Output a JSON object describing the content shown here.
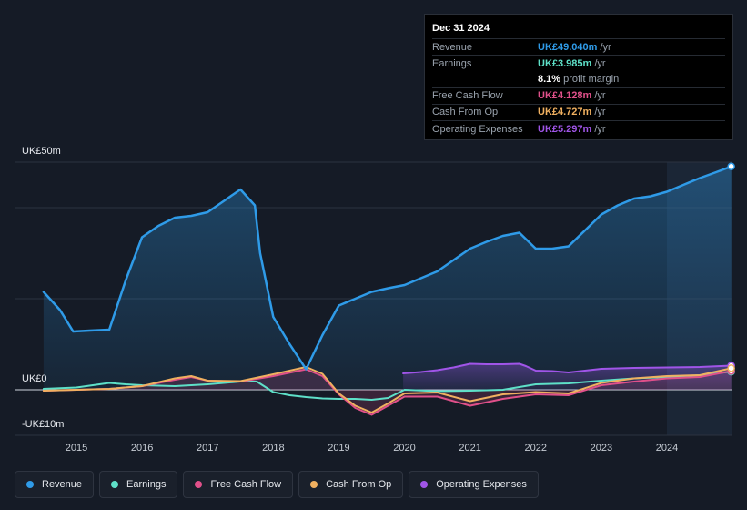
{
  "tooltip": {
    "date": "Dec 31 2024",
    "rows": [
      {
        "label": "Revenue",
        "value": "UK£49.040m",
        "unit": "/yr",
        "color": "#2f9be8"
      },
      {
        "label": "Earnings",
        "value": "UK£3.985m",
        "unit": "/yr",
        "color": "#5ee0c8"
      },
      {
        "label": "",
        "value": "8.1%",
        "unit": "profit margin",
        "color": "#ffffff"
      },
      {
        "label": "Free Cash Flow",
        "value": "UK£4.128m",
        "unit": "/yr",
        "color": "#e0508a"
      },
      {
        "label": "Cash From Op",
        "value": "UK£4.727m",
        "unit": "/yr",
        "color": "#f0b060"
      },
      {
        "label": "Operating Expenses",
        "value": "UK£5.297m",
        "unit": "/yr",
        "color": "#a055e8"
      }
    ]
  },
  "legend": [
    {
      "label": "Revenue",
      "color": "#2f9be8"
    },
    {
      "label": "Earnings",
      "color": "#5ee0c8"
    },
    {
      "label": "Free Cash Flow",
      "color": "#e0508a"
    },
    {
      "label": "Cash From Op",
      "color": "#f0b060"
    },
    {
      "label": "Operating Expenses",
      "color": "#a055e8"
    }
  ],
  "chart_data": {
    "type": "line",
    "ylabel_top": "UK£50m",
    "ylabel_zero": "UK£0",
    "ylabel_bottom": "-UK£10m",
    "ylim": [
      -10,
      50
    ],
    "xlim": [
      2014.5,
      2025.0
    ],
    "x_ticks": [
      "2015",
      "2016",
      "2017",
      "2018",
      "2019",
      "2020",
      "2021",
      "2022",
      "2023",
      "2024"
    ],
    "x_tick_values": [
      2015,
      2016,
      2017,
      2018,
      2019,
      2020,
      2021,
      2022,
      2023,
      2024
    ],
    "forecast_start": 2024.0,
    "series": [
      {
        "name": "Revenue",
        "color": "#2f9be8",
        "fill": true,
        "x": [
          2014.5,
          2014.75,
          2014.95,
          2015.2,
          2015.5,
          2015.75,
          2016.0,
          2016.25,
          2016.5,
          2016.75,
          2017.0,
          2017.25,
          2017.5,
          2017.72,
          2017.8,
          2018.0,
          2018.25,
          2018.5,
          2018.75,
          2019.0,
          2019.25,
          2019.5,
          2019.75,
          2020.0,
          2020.25,
          2020.5,
          2020.75,
          2021.0,
          2021.25,
          2021.5,
          2021.75,
          2022.0,
          2022.25,
          2022.5,
          2022.75,
          2023.0,
          2023.25,
          2023.5,
          2023.75,
          2024.0,
          2024.25,
          2024.5,
          2024.75,
          2024.98
        ],
        "values": [
          21.5,
          17.5,
          12.8,
          13.0,
          13.2,
          24.0,
          33.5,
          36.0,
          37.8,
          38.2,
          39.0,
          41.5,
          44.0,
          40.5,
          30.0,
          16.0,
          10.0,
          4.5,
          12.0,
          18.5,
          20.0,
          21.5,
          22.3,
          23.0,
          24.5,
          26.0,
          28.5,
          31.0,
          32.5,
          33.8,
          34.5,
          31.0,
          31.0,
          31.5,
          35.0,
          38.5,
          40.5,
          42.0,
          42.5,
          43.5,
          45.0,
          46.5,
          47.8,
          49.04
        ]
      },
      {
        "name": "Earnings",
        "color": "#5ee0c8",
        "fill": false,
        "x": [
          2014.5,
          2015.0,
          2015.25,
          2015.5,
          2015.75,
          2016.0,
          2016.5,
          2017.0,
          2017.5,
          2017.75,
          2018.0,
          2018.25,
          2018.5,
          2018.75,
          2019.0,
          2019.25,
          2019.5,
          2019.75,
          2020.0,
          2020.5,
          2021.0,
          2021.5,
          2022.0,
          2022.5,
          2023.0,
          2023.5,
          2024.0,
          2024.5,
          2024.98
        ],
        "values": [
          0.2,
          0.5,
          1.0,
          1.5,
          1.2,
          1.0,
          0.8,
          1.2,
          1.8,
          1.8,
          -0.5,
          -1.2,
          -1.6,
          -1.9,
          -2.0,
          -2.0,
          -2.2,
          -1.8,
          0.0,
          -0.3,
          -0.2,
          0.0,
          1.2,
          1.4,
          2.0,
          2.5,
          2.8,
          3.2,
          3.985
        ]
      },
      {
        "name": "Free Cash Flow",
        "color": "#e0508a",
        "fill": false,
        "x": [
          2014.5,
          2015.0,
          2015.5,
          2016.0,
          2016.5,
          2016.75,
          2017.0,
          2017.5,
          2018.0,
          2018.5,
          2018.75,
          2019.0,
          2019.25,
          2019.5,
          2019.75,
          2020.0,
          2020.5,
          2021.0,
          2021.5,
          2022.0,
          2022.5,
          2023.0,
          2023.5,
          2024.0,
          2024.5,
          2024.98
        ],
        "values": [
          -0.2,
          0.0,
          0.2,
          0.8,
          2.2,
          2.8,
          2.0,
          1.8,
          3.0,
          4.5,
          3.0,
          -1.0,
          -4.0,
          -5.5,
          -3.5,
          -1.5,
          -1.5,
          -3.5,
          -2.0,
          -1.0,
          -1.2,
          1.0,
          1.8,
          2.5,
          2.8,
          4.128
        ]
      },
      {
        "name": "Cash From Op",
        "color": "#f0b060",
        "fill": false,
        "x": [
          2014.5,
          2015.0,
          2015.5,
          2016.0,
          2016.5,
          2016.75,
          2017.0,
          2017.5,
          2018.0,
          2018.5,
          2018.75,
          2019.0,
          2019.25,
          2019.5,
          2019.75,
          2020.0,
          2020.5,
          2021.0,
          2021.5,
          2022.0,
          2022.5,
          2023.0,
          2023.5,
          2024.0,
          2024.5,
          2024.98
        ],
        "values": [
          -0.2,
          0.0,
          0.2,
          0.8,
          2.5,
          3.0,
          2.0,
          1.9,
          3.4,
          5.0,
          3.5,
          -0.8,
          -3.5,
          -5.0,
          -3.0,
          -0.8,
          -0.6,
          -2.5,
          -1.0,
          -0.5,
          -0.8,
          1.5,
          2.5,
          3.0,
          3.2,
          4.727
        ]
      },
      {
        "name": "Operating Expenses",
        "color": "#a055e8",
        "fill": true,
        "x": [
          2019.98,
          2020.25,
          2020.5,
          2020.75,
          2021.0,
          2021.25,
          2021.5,
          2021.75,
          2021.85,
          2022.0,
          2022.25,
          2022.5,
          2022.75,
          2023.0,
          2023.5,
          2024.0,
          2024.5,
          2024.98
        ],
        "values": [
          3.6,
          3.9,
          4.3,
          4.9,
          5.7,
          5.6,
          5.6,
          5.7,
          5.2,
          4.2,
          4.1,
          3.8,
          4.2,
          4.6,
          4.8,
          4.9,
          5.0,
          5.297
        ]
      }
    ]
  }
}
